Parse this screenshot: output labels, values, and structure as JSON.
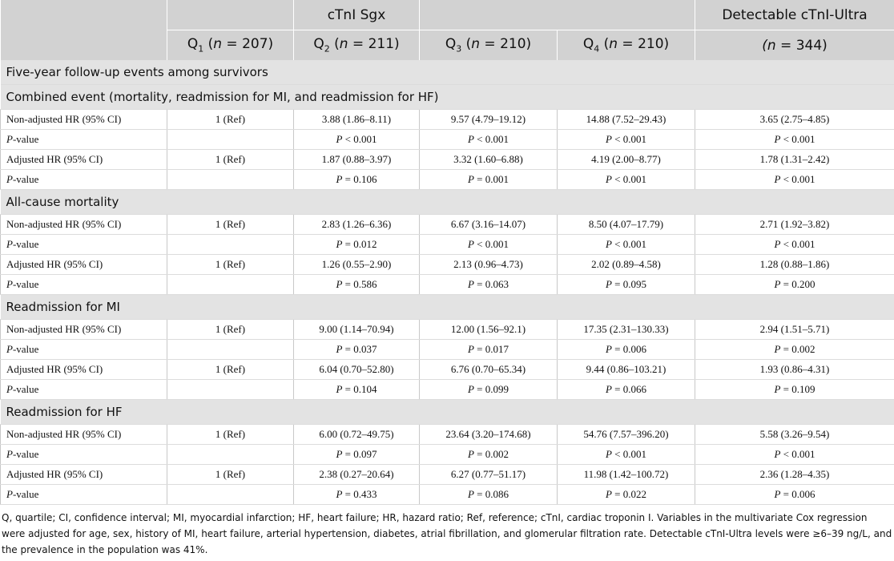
{
  "table": {
    "header": {
      "group1": "cTnI Sgx",
      "group2": "Detectable cTnI-Ultra",
      "quartiles": [
        [
          "Q",
          "1",
          " (",
          "n",
          " = 207)"
        ],
        [
          "Q",
          "2",
          " (",
          "n",
          " = 211)"
        ],
        [
          "Q",
          "3",
          " (",
          "n",
          " = 210)"
        ],
        [
          "Q",
          "4",
          " (",
          "n",
          " = 210)"
        ]
      ],
      "ultra": "(n = 344)"
    },
    "heading": "Five-year follow-up events among survivors",
    "sections": [
      {
        "title": "Combined event (mortality, readmission for MI, and readmission for HF)",
        "rows": [
          {
            "label": "Non-adjusted HR (95% CI)",
            "cells": [
              "1 (Ref)",
              "3.88 (1.86–8.11)",
              "9.57 (4.79–19.12)",
              "14.88 (7.52–29.43)",
              "3.65 (2.75–4.85)"
            ]
          },
          {
            "label": "P-value",
            "cells": [
              null,
              "P < 0.001",
              "P < 0.001",
              "P < 0.001",
              "P < 0.001"
            ]
          },
          {
            "label": "Adjusted HR (95% CI)",
            "cells": [
              "1 (Ref)",
              "1.87 (0.88–3.97)",
              "3.32 (1.60–6.88)",
              "4.19 (2.00–8.77)",
              "1.78 (1.31–2.42)"
            ]
          },
          {
            "label": "P-value",
            "cells": [
              null,
              "P = 0.106",
              "P = 0.001",
              "P < 0.001",
              "P < 0.001"
            ]
          }
        ]
      },
      {
        "title": "All-cause mortality",
        "rows": [
          {
            "label": "Non-adjusted HR (95% CI)",
            "cells": [
              "1 (Ref)",
              "2.83 (1.26–6.36)",
              "6.67 (3.16–14.07)",
              "8.50 (4.07–17.79)",
              "2.71 (1.92–3.82)"
            ]
          },
          {
            "label": "P-value",
            "cells": [
              null,
              "P = 0.012",
              "P < 0.001",
              "P < 0.001",
              "P < 0.001"
            ]
          },
          {
            "label": "Adjusted HR (95% CI)",
            "cells": [
              "1 (Ref)",
              "1.26 (0.55–2.90)",
              "2.13 (0.96–4.73)",
              "2.02 (0.89–4.58)",
              "1.28 (0.88–1.86)"
            ]
          },
          {
            "label": "P-value",
            "cells": [
              null,
              "P = 0.586",
              "P = 0.063",
              "P = 0.095",
              "P = 0.200"
            ]
          }
        ]
      },
      {
        "title": "Readmission for MI",
        "rows": [
          {
            "label": "Non-adjusted HR (95% CI)",
            "cells": [
              "1 (Ref)",
              "9.00 (1.14–70.94)",
              "12.00 (1.56–92.1)",
              "17.35 (2.31–130.33)",
              "2.94 (1.51–5.71)"
            ]
          },
          {
            "label": "P-value",
            "cells": [
              null,
              "P = 0.037",
              "P = 0.017",
              "P = 0.006",
              "P = 0.002"
            ]
          },
          {
            "label": "Adjusted HR (95% CI)",
            "cells": [
              "1 (Ref)",
              "6.04 (0.70–52.80)",
              "6.76 (0.70–65.34)",
              "9.44 (0.86–103.21)",
              "1.93 (0.86–4.31)"
            ]
          },
          {
            "label": "P-value",
            "cells": [
              null,
              "P = 0.104",
              "P = 0.099",
              "P = 0.066",
              "P = 0.109"
            ]
          }
        ]
      },
      {
        "title": "Readmission for HF",
        "rows": [
          {
            "label": "Non-adjusted HR (95% CI)",
            "cells": [
              "1 (Ref)",
              "6.00 (0.72–49.75)",
              "23.64 (3.20–174.68)",
              "54.76 (7.57–396.20)",
              "5.58 (3.26–9.54)"
            ]
          },
          {
            "label": "P-value",
            "cells": [
              null,
              "P = 0.097",
              "P = 0.002",
              "P < 0.001",
              "P < 0.001"
            ]
          },
          {
            "label": "Adjusted HR (95% CI)",
            "cells": [
              "1 (Ref)",
              "2.38 (0.27–20.64)",
              "6.27 (0.77–51.17)",
              "11.98 (1.42–100.72)",
              "2.36 (1.28–4.35)"
            ]
          },
          {
            "label": "P-value",
            "cells": [
              null,
              "P = 0.433",
              "P = 0.086",
              "P = 0.022",
              "P = 0.006"
            ]
          }
        ]
      }
    ],
    "footnote": "Q, quartile; CI, confidence interval; MI, myocardial infarction; HF, heart failure; HR, hazard ratio; Ref, reference; cTnI, cardiac troponin I. Variables in the multivariate Cox regression were adjusted for age, sex, history of MI, heart failure, arterial hypertension, diabetes, atrial fibrillation, and glomerular filtration rate. Detectable cTnI-Ultra levels were ≥6–39 ng/L, and the prevalence in the population was 41%."
  }
}
